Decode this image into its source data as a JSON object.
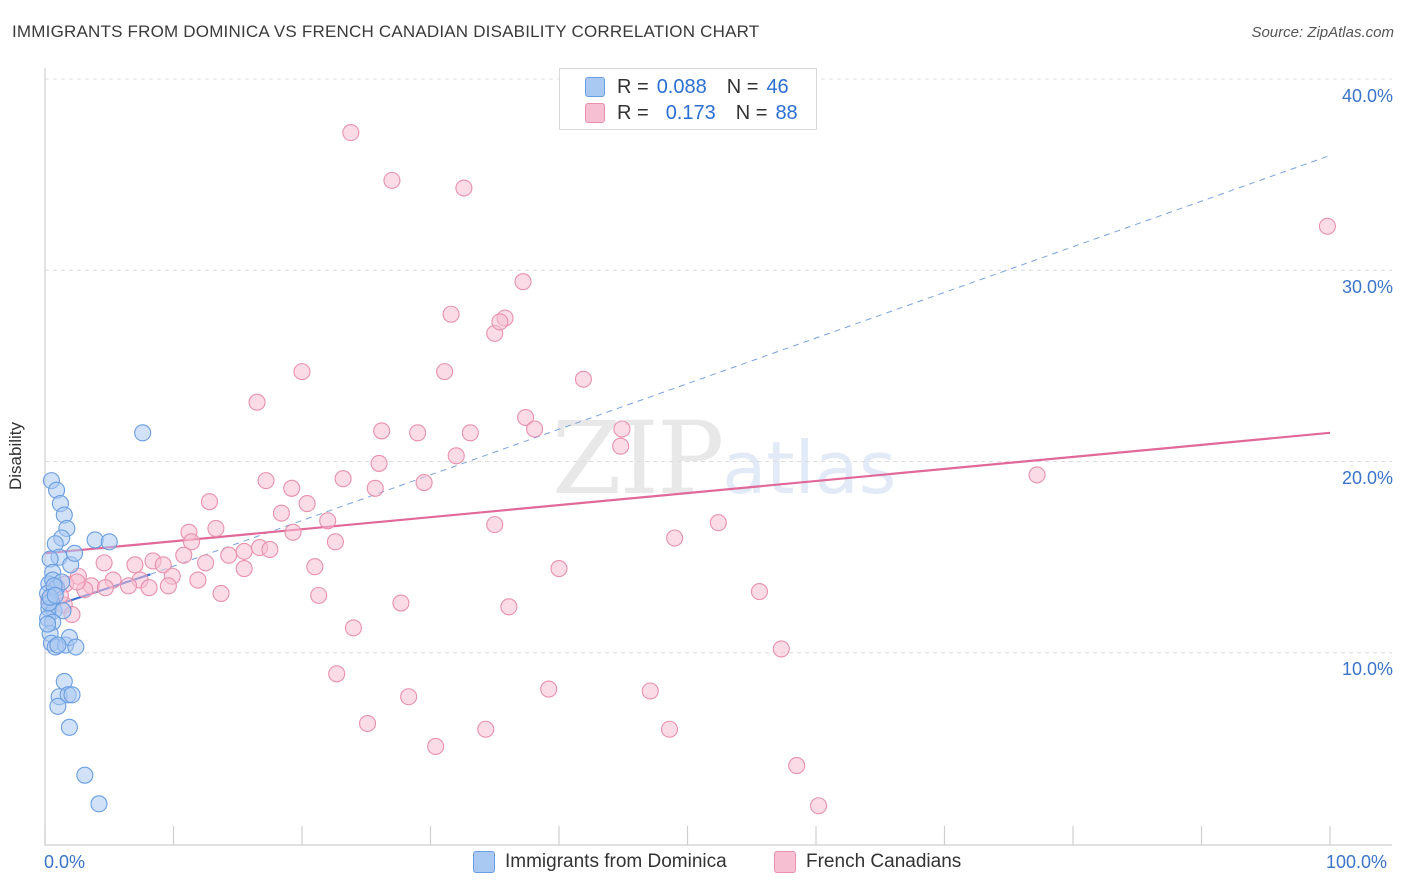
{
  "title": "IMMIGRANTS FROM DOMINICA VS FRENCH CANADIAN DISABILITY CORRELATION CHART",
  "source": "Source: ZipAtlas.com",
  "watermark": {
    "zip": "ZIP",
    "atlas": "atlas"
  },
  "legend": {
    "rows": [
      {
        "r_label": "R =",
        "r_value": "0.088",
        "n_label": "N =",
        "n_value": "46",
        "color": "#a9c8f2",
        "border": "#6a9ee0"
      },
      {
        "r_label": "R =",
        "r_value": "0.173",
        "n_label": "N =",
        "n_value": "88",
        "color": "#f7c0d2",
        "border": "#e890ad"
      }
    ]
  },
  "bottom_legend": [
    {
      "label": "Immigrants from Dominica",
      "color": "#a9c8f2",
      "border": "#6a9ee0"
    },
    {
      "label": "French Canadians",
      "color": "#f7c0d2",
      "border": "#e890ad"
    }
  ],
  "chart_data": {
    "type": "scatter",
    "title": "IMMIGRANTS FROM DOMINICA VS FRENCH CANADIAN DISABILITY CORRELATION CHART",
    "xlabel": "",
    "ylabel": "Disability",
    "xlim": [
      0,
      100
    ],
    "ylim": [
      0,
      40
    ],
    "x_tick_labels": [
      "0.0%",
      "100.0%"
    ],
    "y_ticks": [
      10,
      20,
      30,
      40
    ],
    "y_tick_labels": [
      "10.0%",
      "20.0%",
      "30.0%",
      "40.0%"
    ],
    "grid": true,
    "series": [
      {
        "name": "Immigrants from Dominica",
        "color": "#6a9ee0",
        "fill": "#a9c8f2",
        "points": [
          [
            0.5,
            19.0
          ],
          [
            0.9,
            18.5
          ],
          [
            1.2,
            17.8
          ],
          [
            1.5,
            17.2
          ],
          [
            1.7,
            16.5
          ],
          [
            1.3,
            16.0
          ],
          [
            0.8,
            15.7
          ],
          [
            1.1,
            15.0
          ],
          [
            0.4,
            14.9
          ],
          [
            0.6,
            14.2
          ],
          [
            2.0,
            14.6
          ],
          [
            2.3,
            15.2
          ],
          [
            3.9,
            15.9
          ],
          [
            5.0,
            15.8
          ],
          [
            0.3,
            13.6
          ],
          [
            0.6,
            13.8
          ],
          [
            0.9,
            13.4
          ],
          [
            1.3,
            13.7
          ],
          [
            0.2,
            13.1
          ],
          [
            0.5,
            12.7
          ],
          [
            0.3,
            12.3
          ],
          [
            0.7,
            12.2
          ],
          [
            1.4,
            12.2
          ],
          [
            0.2,
            11.8
          ],
          [
            0.6,
            11.6
          ],
          [
            0.4,
            11.0
          ],
          [
            0.5,
            10.5
          ],
          [
            0.8,
            10.3
          ],
          [
            1.6,
            10.4
          ],
          [
            1.9,
            10.8
          ],
          [
            2.4,
            10.3
          ],
          [
            1.5,
            8.5
          ],
          [
            1.1,
            7.7
          ],
          [
            1.8,
            7.8
          ],
          [
            2.1,
            7.8
          ],
          [
            1.0,
            7.2
          ],
          [
            1.9,
            6.1
          ],
          [
            3.1,
            3.6
          ],
          [
            4.2,
            2.1
          ],
          [
            7.6,
            21.5
          ],
          [
            0.3,
            12.6
          ],
          [
            0.7,
            13.5
          ],
          [
            0.2,
            11.5
          ],
          [
            0.4,
            12.9
          ],
          [
            1.0,
            10.4
          ],
          [
            0.8,
            13.0
          ]
        ]
      },
      {
        "name": "French Canadians",
        "color": "#e890ad",
        "fill": "#f7c0d2",
        "points": [
          [
            23.8,
            37.2
          ],
          [
            27.0,
            34.7
          ],
          [
            32.6,
            34.3
          ],
          [
            37.2,
            29.4
          ],
          [
            35.8,
            27.5
          ],
          [
            31.6,
            27.7
          ],
          [
            35.0,
            26.7
          ],
          [
            35.4,
            27.3
          ],
          [
            20.0,
            24.7
          ],
          [
            31.1,
            24.7
          ],
          [
            41.9,
            24.3
          ],
          [
            16.5,
            23.1
          ],
          [
            37.4,
            22.3
          ],
          [
            26.2,
            21.6
          ],
          [
            29.0,
            21.5
          ],
          [
            33.1,
            21.5
          ],
          [
            38.1,
            21.7
          ],
          [
            44.9,
            21.7
          ],
          [
            44.8,
            20.8
          ],
          [
            32.0,
            20.3
          ],
          [
            26.0,
            19.9
          ],
          [
            17.2,
            19.0
          ],
          [
            23.2,
            19.1
          ],
          [
            19.2,
            18.6
          ],
          [
            25.7,
            18.6
          ],
          [
            29.5,
            18.9
          ],
          [
            12.8,
            17.9
          ],
          [
            20.4,
            17.8
          ],
          [
            18.4,
            17.3
          ],
          [
            22.0,
            16.9
          ],
          [
            35.0,
            16.7
          ],
          [
            52.4,
            16.8
          ],
          [
            77.2,
            19.3
          ],
          [
            11.2,
            16.3
          ],
          [
            13.3,
            16.5
          ],
          [
            19.3,
            16.3
          ],
          [
            49.0,
            16.0
          ],
          [
            22.6,
            15.8
          ],
          [
            11.4,
            15.8
          ],
          [
            10.8,
            15.1
          ],
          [
            14.3,
            15.1
          ],
          [
            15.5,
            15.3
          ],
          [
            16.7,
            15.5
          ],
          [
            17.5,
            15.4
          ],
          [
            8.4,
            14.8
          ],
          [
            9.2,
            14.6
          ],
          [
            12.5,
            14.7
          ],
          [
            15.5,
            14.4
          ],
          [
            7.0,
            14.6
          ],
          [
            4.6,
            14.7
          ],
          [
            21.0,
            14.5
          ],
          [
            40.0,
            14.4
          ],
          [
            2.6,
            14.0
          ],
          [
            5.3,
            13.8
          ],
          [
            7.4,
            13.8
          ],
          [
            9.9,
            14.0
          ],
          [
            11.9,
            13.8
          ],
          [
            3.6,
            13.5
          ],
          [
            1.6,
            13.6
          ],
          [
            8.1,
            13.4
          ],
          [
            9.6,
            13.5
          ],
          [
            6.5,
            13.5
          ],
          [
            4.7,
            13.4
          ],
          [
            13.7,
            13.1
          ],
          [
            21.3,
            13.0
          ],
          [
            27.7,
            12.6
          ],
          [
            36.1,
            12.4
          ],
          [
            55.6,
            13.2
          ],
          [
            0.8,
            13.5
          ],
          [
            1.5,
            12.5
          ],
          [
            2.1,
            12.0
          ],
          [
            1.2,
            13.0
          ],
          [
            3.1,
            13.3
          ],
          [
            24.0,
            11.3
          ],
          [
            57.3,
            10.2
          ],
          [
            22.7,
            8.9
          ],
          [
            28.3,
            7.7
          ],
          [
            39.2,
            8.1
          ],
          [
            47.1,
            8.0
          ],
          [
            25.1,
            6.3
          ],
          [
            34.3,
            6.0
          ],
          [
            48.6,
            6.0
          ],
          [
            30.4,
            5.1
          ],
          [
            58.5,
            4.1
          ],
          [
            60.2,
            2.0
          ],
          [
            99.8,
            32.3
          ],
          [
            0.3,
            12.8
          ],
          [
            2.5,
            13.7
          ]
        ]
      }
    ],
    "trend_lines": [
      {
        "series": "Immigrants from Dominica",
        "style": "solid",
        "x": [
          0,
          8.2
        ],
        "y": [
          12.3,
          14.1
        ]
      },
      {
        "series": "Immigrants from Dominica",
        "style": "dashed",
        "x": [
          8.2,
          100
        ],
        "y": [
          14.1,
          36.0
        ]
      },
      {
        "series": "French Canadians",
        "style": "solid",
        "x": [
          0,
          100
        ],
        "y": [
          15.2,
          21.5
        ]
      }
    ]
  }
}
